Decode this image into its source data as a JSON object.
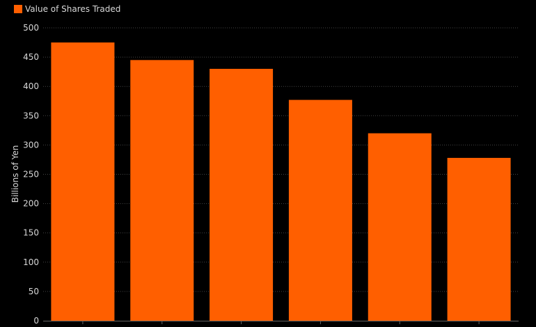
{
  "chart_data": {
    "type": "bar",
    "title": "",
    "legend": [
      "Value of Shares Traded"
    ],
    "legend_placement": "top-left",
    "categories": [
      "",
      "",
      "",
      "",
      "",
      ""
    ],
    "series": [
      {
        "name": "Value of Shares Traded",
        "values": [
          475,
          445,
          430,
          377,
          320,
          278
        ]
      }
    ],
    "xlabel": "",
    "ylabel": "Billions of Yen",
    "ylim": [
      0,
      500
    ],
    "yticks": [
      0,
      50,
      100,
      150,
      200,
      250,
      300,
      350,
      400,
      450,
      500
    ],
    "grid": true,
    "colors": {
      "bar": "#ff5f00",
      "background": "#000000",
      "text": "#d8d8d8"
    }
  }
}
